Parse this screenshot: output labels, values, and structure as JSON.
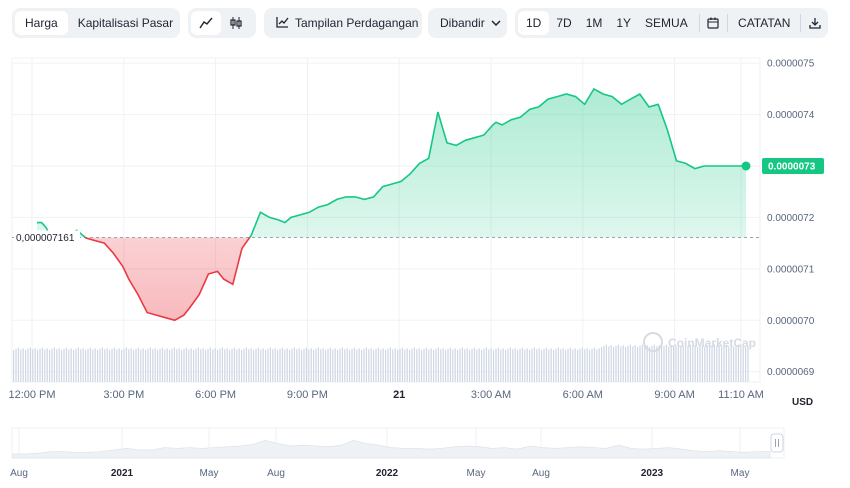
{
  "toolbar": {
    "view_tabs": [
      {
        "label": "Harga",
        "active": true
      },
      {
        "label": "Kapitalisasi Pasar",
        "active": false
      }
    ],
    "chart_type_icons": [
      {
        "icon": "line-chart-icon",
        "active": true
      },
      {
        "icon": "candlestick-icon",
        "active": false
      }
    ],
    "trading_view": {
      "icon": "trading-view-icon",
      "label": "Tampilan Perdagangan"
    },
    "compare": {
      "label": "Dibandir",
      "icon": "chevron-down-icon"
    },
    "ranges": [
      {
        "label": "1D",
        "active": true
      },
      {
        "label": "7D",
        "active": false
      },
      {
        "label": "1M",
        "active": false
      },
      {
        "label": "1Y",
        "active": false
      },
      {
        "label": "SEMUA",
        "active": false
      }
    ],
    "calendar_icon": "calendar-icon",
    "notes_label": "CATATAN",
    "download_icon": "download-icon"
  },
  "colors": {
    "up": "#16c784",
    "down": "#ea3943",
    "up_fill": "#16c784",
    "down_fill": "#ea3943",
    "reference_line": "#9aa3b2",
    "grid": "#eff2f5",
    "volume": "#cfd6e4"
  },
  "chart_data": {
    "type": "line",
    "y_ticks": [
      "0.0000075",
      "0.0000074",
      "0.0000073",
      "0.0000072",
      "0.0000071",
      "0.0000070",
      "0.0000069"
    ],
    "y_tick_values": [
      7.5e-06,
      7.4e-06,
      7.3e-06,
      7.2e-06,
      7.1e-06,
      7e-06,
      6.9e-06
    ],
    "ylim": [
      6.88e-06,
      7.51e-06
    ],
    "x_ticks": [
      {
        "label": "12:00 PM",
        "h": 0,
        "bold": false
      },
      {
        "label": "3:00 PM",
        "h": 3,
        "bold": false
      },
      {
        "label": "6:00 PM",
        "h": 6,
        "bold": false
      },
      {
        "label": "9:00 PM",
        "h": 9,
        "bold": false
      },
      {
        "label": "21",
        "h": 12,
        "bold": true
      },
      {
        "label": "3:00 AM",
        "h": 15,
        "bold": false
      },
      {
        "label": "6:00 AM",
        "h": 18,
        "bold": false
      },
      {
        "label": "9:00 AM",
        "h": 21,
        "bold": false
      },
      {
        "label": "11:10 AM",
        "h": 23.17,
        "bold": false
      }
    ],
    "reference_value": 7.161e-06,
    "reference_label": "0,000007161",
    "current_value": 7.3e-06,
    "current_label": "0.0000073",
    "currency": "USD",
    "x_hours": [
      0,
      0.15,
      0.3,
      0.5,
      0.8,
      1.0,
      1.3,
      1.6,
      1.9,
      2.2,
      2.5,
      2.8,
      3.0,
      3.3,
      3.6,
      3.9,
      4.2,
      4.5,
      4.8,
      5.0,
      5.3,
      5.6,
      5.9,
      6.1,
      6.4,
      6.7,
      7.0,
      7.3,
      7.6,
      7.9,
      8.1,
      8.3,
      8.6,
      8.9,
      9.2,
      9.5,
      9.8,
      10.1,
      10.4,
      10.7,
      11.0,
      11.3,
      11.6,
      11.9,
      12.2,
      12.5,
      12.8,
      13.1,
      13.4,
      13.7,
      14.0,
      14.3,
      14.6,
      14.9,
      15.0,
      15.2,
      15.5,
      15.8,
      16.1,
      16.4,
      16.7,
      17.0,
      17.3,
      17.6,
      17.9,
      18.2,
      18.5,
      18.8,
      19.1,
      19.4,
      19.7,
      20.0,
      20.3,
      20.6,
      20.9,
      21.2,
      21.5,
      21.8,
      22.1,
      22.4,
      22.7,
      23.0,
      23.17
    ],
    "y_values": [
      7.19e-06,
      7.19e-06,
      7.18e-06,
      7.155e-06,
      7.155e-06,
      7.165e-06,
      7.175e-06,
      7.16e-06,
      7.155e-06,
      7.15e-06,
      7.13e-06,
      7.105e-06,
      7.08e-06,
      7.05e-06,
      7.015e-06,
      7.01e-06,
      7.005e-06,
      7e-06,
      7.01e-06,
      7.025e-06,
      7.05e-06,
      7.09e-06,
      7.095e-06,
      7.08e-06,
      7.07e-06,
      7.14e-06,
      7.165e-06,
      7.21e-06,
      7.2e-06,
      7.195e-06,
      7.19e-06,
      7.2e-06,
      7.205e-06,
      7.21e-06,
      7.22e-06,
      7.225e-06,
      7.235e-06,
      7.24e-06,
      7.24e-06,
      7.235e-06,
      7.24e-06,
      7.26e-06,
      7.265e-06,
      7.27e-06,
      7.285e-06,
      7.305e-06,
      7.315e-06,
      7.405e-06,
      7.345e-06,
      7.34e-06,
      7.35e-06,
      7.355e-06,
      7.36e-06,
      7.38e-06,
      7.385e-06,
      7.38e-06,
      7.39e-06,
      7.395e-06,
      7.41e-06,
      7.415e-06,
      7.43e-06,
      7.435e-06,
      7.44e-06,
      7.435e-06,
      7.42e-06,
      7.45e-06,
      7.44e-06,
      7.435e-06,
      7.42e-06,
      7.43e-06,
      7.44e-06,
      7.415e-06,
      7.42e-06,
      7.37e-06,
      7.31e-06,
      7.305e-06,
      7.295e-06,
      7.3e-06,
      7.3e-06,
      7.3e-06,
      7.3e-06,
      7.3e-06,
      7.3e-06
    ]
  },
  "navigator": {
    "labels": [
      {
        "label": "Aug",
        "bold": false
      },
      {
        "label": "2021",
        "bold": true
      },
      {
        "label": "May",
        "bold": false
      },
      {
        "label": "Aug",
        "bold": false
      },
      {
        "label": "2022",
        "bold": true
      },
      {
        "label": "May",
        "bold": false
      },
      {
        "label": "Aug",
        "bold": false
      },
      {
        "label": "2023",
        "bold": true
      },
      {
        "label": "May",
        "bold": false
      }
    ],
    "handle_icon": "drag-handle-icon"
  },
  "watermark": "CoinMarketCap"
}
